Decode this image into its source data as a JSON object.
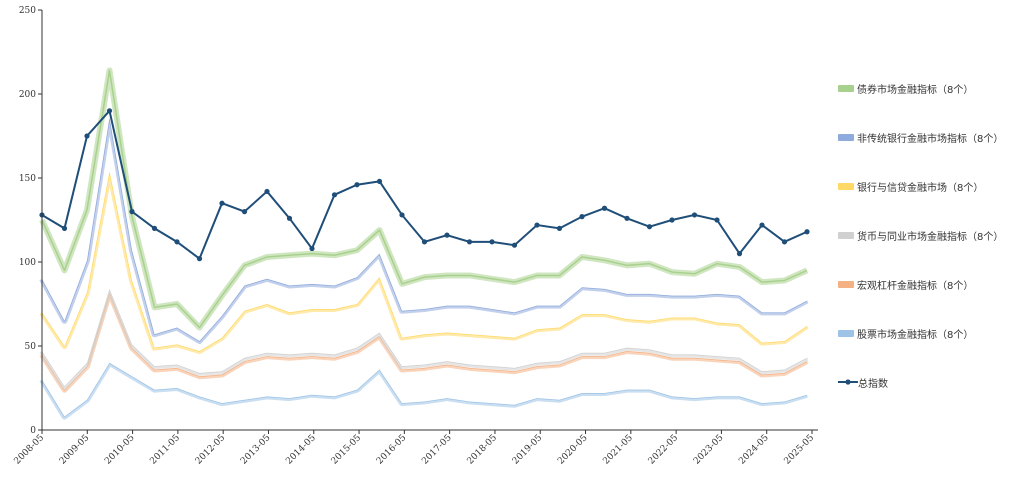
{
  "chart_data": {
    "type": "area",
    "title": "",
    "xlabel": "",
    "ylabel": "",
    "ylim": [
      0,
      250
    ],
    "y_ticks": [
      "0",
      "50",
      "100",
      "150",
      "200",
      "250"
    ],
    "x_ticks": [
      "2008-05",
      "2009-05",
      "2010-05",
      "2011-05",
      "2012-05",
      "2013-05",
      "2014-05",
      "2015-05",
      "2016-05",
      "2017-05",
      "2018-05",
      "2019-05",
      "2020-05",
      "2021-05",
      "2022-05",
      "2023-05",
      "2024-05",
      "2025-05"
    ],
    "grid": false,
    "legend_position": "right",
    "x": [
      "2008-05",
      "2008-11",
      "2009-05",
      "2009-11",
      "2010-05",
      "2010-11",
      "2011-05",
      "2011-11",
      "2012-05",
      "2012-11",
      "2013-05",
      "2013-11",
      "2014-05",
      "2014-11",
      "2015-05",
      "2015-11",
      "2016-05",
      "2016-11",
      "2017-05",
      "2017-11",
      "2018-05",
      "2018-11",
      "2019-05",
      "2019-11",
      "2020-05",
      "2020-11",
      "2021-05",
      "2021-11",
      "2022-05",
      "2022-11",
      "2023-05",
      "2023-11",
      "2024-05",
      "2024-11",
      "2025-05"
    ],
    "series": [
      {
        "name": "股票市场金融指标（8个）",
        "color": "#9dc3e6",
        "values": [
          30,
          8,
          18,
          40,
          32,
          24,
          25,
          20,
          16,
          18,
          20,
          19,
          21,
          20,
          24,
          36,
          16,
          17,
          19,
          17,
          16,
          15,
          19,
          18,
          22,
          22,
          24,
          24,
          20,
          19,
          20,
          20,
          16,
          17,
          21
        ]
      },
      {
        "name": "宏观杠杆金融指标（8个）",
        "color": "#f4b183",
        "values": [
          15,
          16,
          20,
          42,
          17,
          12,
          12,
          12,
          17,
          23,
          24,
          24,
          23,
          23,
          23,
          20,
          20,
          20,
          20,
          20,
          20,
          20,
          19,
          21,
          22,
          22,
          23,
          22,
          23,
          24,
          22,
          21,
          17,
          17,
          20
        ]
      },
      {
        "name": "货币与同业市场金融指标（8个）",
        "color": "#d0d0d0",
        "values": [
          2,
          2,
          2,
          2,
          2,
          2,
          2,
          2,
          2,
          2,
          2,
          2,
          2,
          2,
          2,
          2,
          2,
          2,
          2,
          2,
          2,
          2,
          2,
          2,
          2,
          2,
          2,
          2,
          2,
          2,
          2,
          2,
          2,
          2,
          2
        ]
      },
      {
        "name": "银行与信贷金融市场（8个）",
        "color": "#ffd966",
        "values": [
          23,
          24,
          42,
          70,
          38,
          11,
          12,
          13,
          20,
          28,
          29,
          25,
          26,
          27,
          26,
          33,
          17,
          18,
          17,
          18,
          18,
          18,
          20,
          20,
          23,
          23,
          17,
          17,
          22,
          22,
          20,
          20,
          17,
          17,
          19
        ]
      },
      {
        "name": "非传统银行金融市场指标（8个）",
        "color": "#8faadc",
        "values": [
          20,
          15,
          19,
          32,
          18,
          8,
          10,
          6,
          13,
          15,
          15,
          16,
          15,
          14,
          16,
          14,
          16,
          15,
          16,
          17,
          16,
          15,
          14,
          13,
          16,
          15,
          15,
          16,
          13,
          13,
          17,
          17,
          18,
          17,
          15
        ]
      },
      {
        "name": "债券市场金融指标（8个）",
        "color": "#a9d18e",
        "values": [
          35,
          30,
          30,
          28,
          20,
          16,
          14,
          8,
          12,
          12,
          13,
          18,
          18,
          18,
          16,
          14,
          16,
          19,
          18,
          18,
          18,
          18,
          18,
          18,
          18,
          17,
          17,
          18,
          14,
          13,
          18,
          17,
          18,
          19,
          18
        ]
      }
    ],
    "total": {
      "name": "总指数",
      "color": "#1f4e79",
      "values": [
        128,
        120,
        175,
        190,
        130,
        120,
        112,
        102,
        135,
        130,
        142,
        126,
        108,
        140,
        146,
        148,
        128,
        112,
        116,
        112,
        112,
        110,
        122,
        120,
        127,
        132,
        126,
        121,
        125,
        128,
        125,
        105,
        122,
        112,
        118
      ]
    }
  }
}
